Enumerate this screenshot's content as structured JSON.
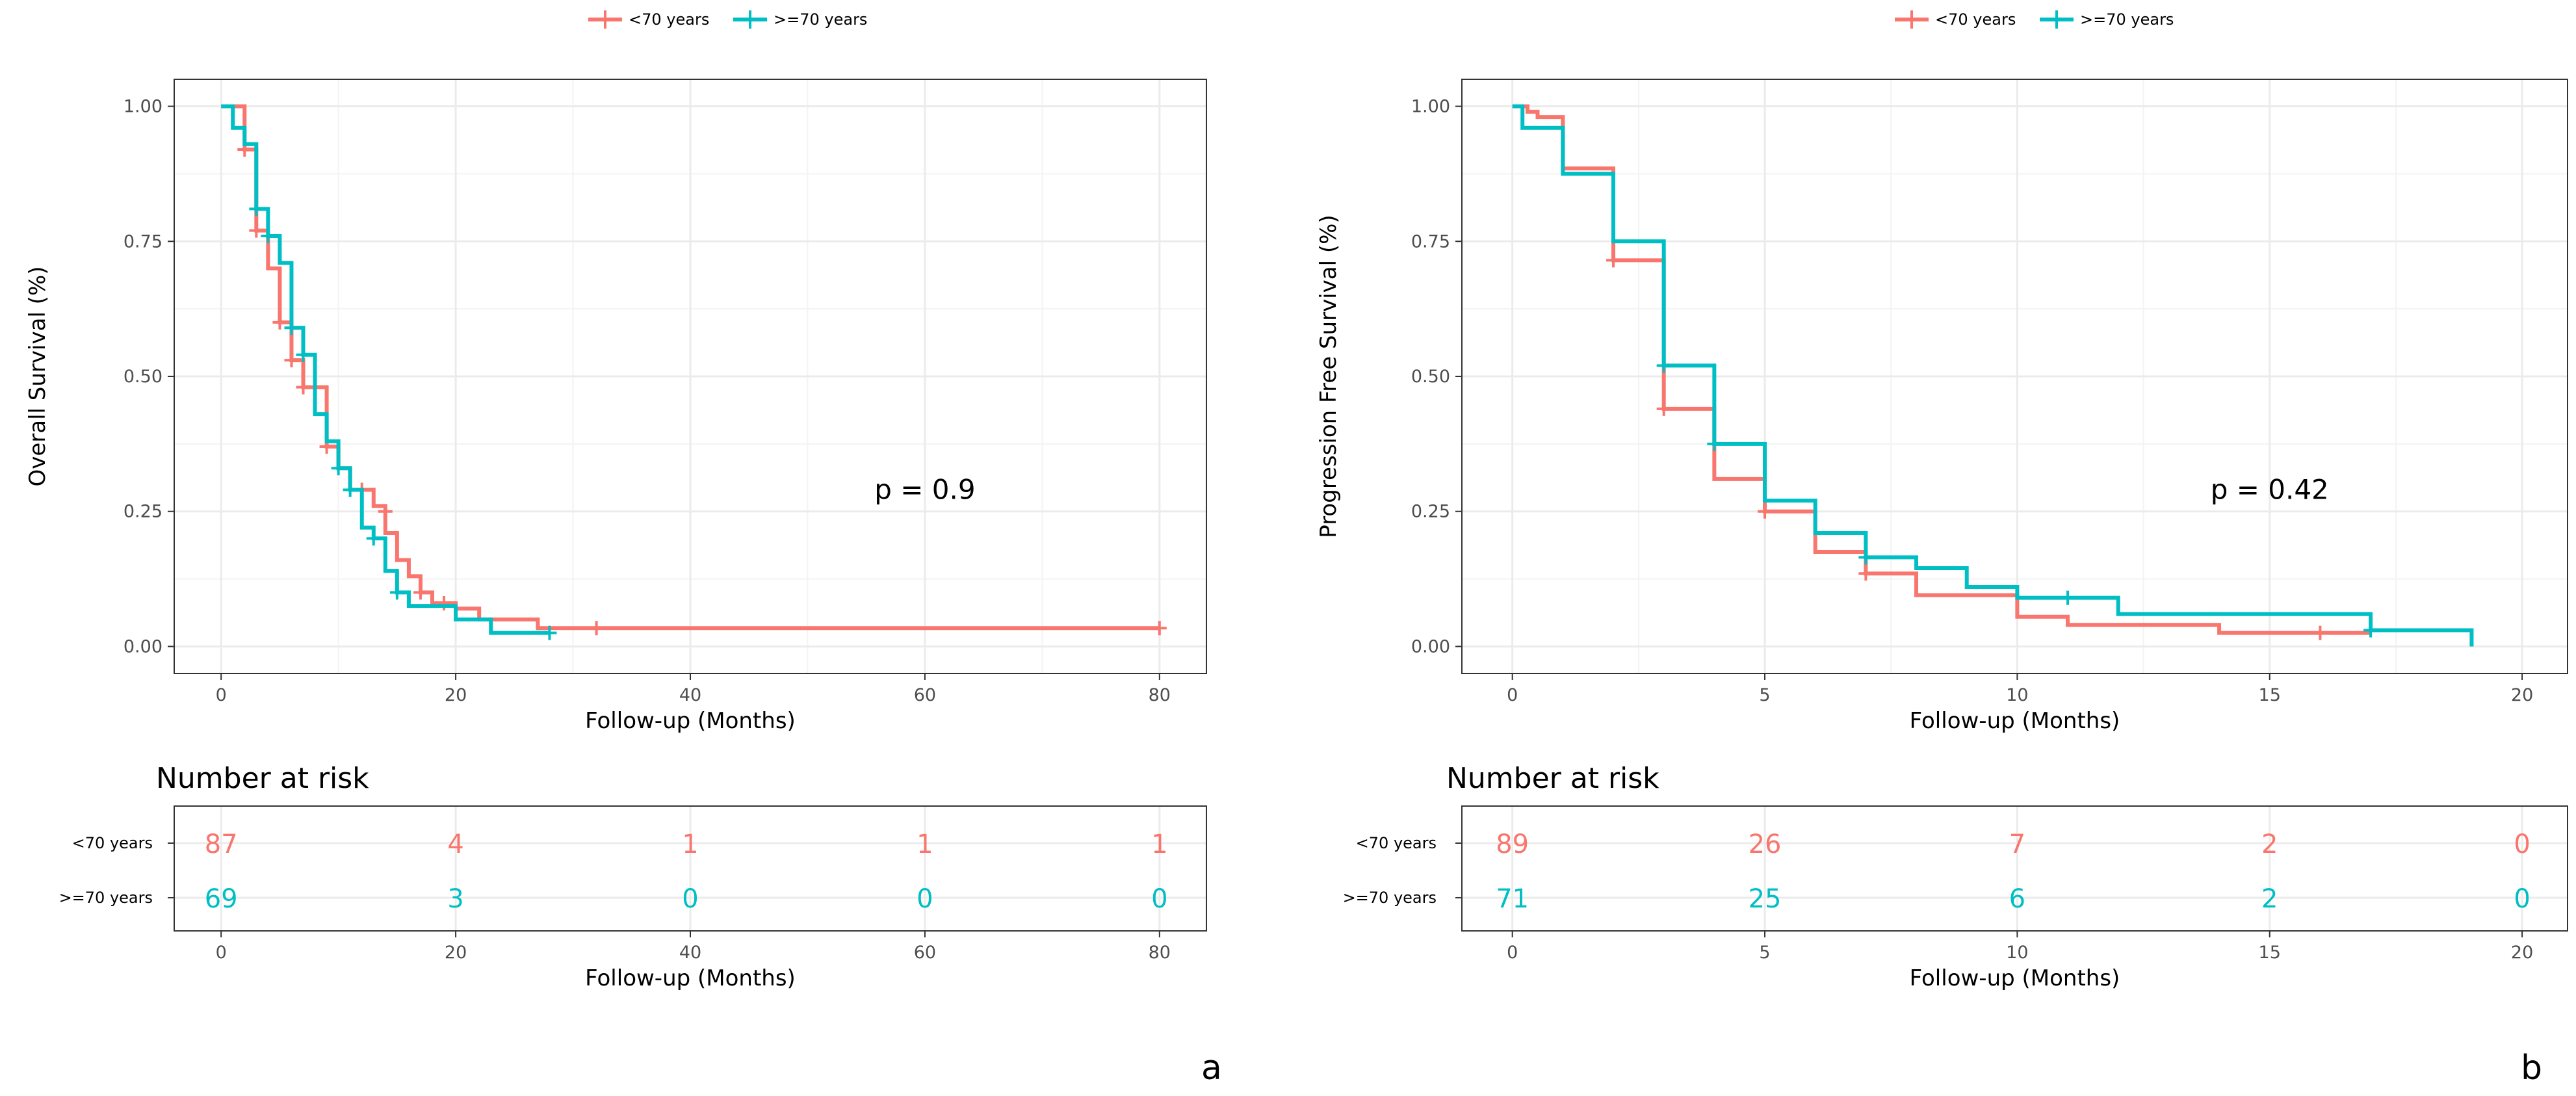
{
  "colors": {
    "group1": "#F8766D",
    "group2": "#00BFC4",
    "axis_text": "#4d4d4d",
    "text": "#000000",
    "grid": "#ebebeb",
    "border": "#333333"
  },
  "legend_labels": [
    "<70 years",
    ">=70 years"
  ],
  "panel_letters": [
    "a",
    "b"
  ],
  "risk_title": "Number at risk",
  "chart_data": [
    {
      "type": "line",
      "subtype": "kaplan-meier step",
      "title": "",
      "xlabel": "Follow-up (Months)",
      "ylabel": "Overall Survival (%)",
      "xlim": [
        -4,
        84
      ],
      "ylim": [
        -0.05,
        1.05
      ],
      "xticks": [
        0,
        20,
        40,
        60,
        80
      ],
      "yticks": [
        0,
        0.25,
        0.5,
        0.75,
        1.0
      ],
      "ytick_labels": [
        "0.00",
        "0.25",
        "0.50",
        "0.75",
        "1.00"
      ],
      "pvalue": {
        "text": "p = 0.9",
        "x": 60,
        "y": 0.29
      },
      "legend": "top-center",
      "grid": true,
      "series": [
        {
          "name": "<70 years",
          "steps": [
            [
              0,
              1.0
            ],
            [
              2,
              0.92
            ],
            [
              3,
              0.77
            ],
            [
              4,
              0.7
            ],
            [
              5,
              0.6
            ],
            [
              6,
              0.53
            ],
            [
              7,
              0.48
            ],
            [
              9,
              0.37
            ],
            [
              10,
              0.33
            ],
            [
              11,
              0.29
            ],
            [
              13,
              0.26
            ],
            [
              14,
              0.21
            ],
            [
              15,
              0.16
            ],
            [
              16,
              0.13
            ],
            [
              17,
              0.1
            ],
            [
              18,
              0.08
            ],
            [
              20,
              0.07
            ],
            [
              22,
              0.05
            ],
            [
              27,
              0.034
            ],
            [
              80,
              0.034
            ]
          ],
          "censors": [
            [
              2,
              0.92
            ],
            [
              3,
              0.77
            ],
            [
              5,
              0.6
            ],
            [
              6,
              0.53
            ],
            [
              7,
              0.48
            ],
            [
              9,
              0.37
            ],
            [
              12,
              0.29
            ],
            [
              14,
              0.25
            ],
            [
              17,
              0.1
            ],
            [
              19,
              0.08
            ],
            [
              32,
              0.034
            ],
            [
              80,
              0.034
            ]
          ]
        },
        {
          "name": ">=70 years",
          "steps": [
            [
              0,
              1.0
            ],
            [
              1,
              0.96
            ],
            [
              2,
              0.93
            ],
            [
              3,
              0.81
            ],
            [
              4,
              0.76
            ],
            [
              5,
              0.71
            ],
            [
              6,
              0.59
            ],
            [
              7,
              0.54
            ],
            [
              8,
              0.43
            ],
            [
              9,
              0.38
            ],
            [
              10,
              0.33
            ],
            [
              11,
              0.29
            ],
            [
              12,
              0.22
            ],
            [
              13,
              0.2
            ],
            [
              14,
              0.14
            ],
            [
              15,
              0.1
            ],
            [
              16,
              0.075
            ],
            [
              19,
              0.075
            ],
            [
              20,
              0.05
            ],
            [
              23,
              0.025
            ],
            [
              28,
              0.025
            ]
          ],
          "censors": [
            [
              3,
              0.81
            ],
            [
              4,
              0.76
            ],
            [
              6,
              0.59
            ],
            [
              7,
              0.54
            ],
            [
              10,
              0.33
            ],
            [
              11,
              0.29
            ],
            [
              13,
              0.2
            ],
            [
              15,
              0.1
            ],
            [
              28,
              0.025
            ]
          ]
        }
      ],
      "risk_table": {
        "xlabel": "Follow-up (Months)",
        "times": [
          0,
          20,
          40,
          60,
          80
        ],
        "rows": [
          {
            "label": "<70 years",
            "counts": [
              "87",
              "4",
              "1",
              "1",
              "1"
            ]
          },
          {
            "label": ">=70 years",
            "counts": [
              "69",
              "3",
              "0",
              "0",
              "0"
            ]
          }
        ]
      }
    },
    {
      "type": "line",
      "subtype": "kaplan-meier step",
      "title": "",
      "xlabel": "Follow-up (Months)",
      "ylabel": "Progression Free Survival (%)",
      "xlim": [
        -1,
        20.9
      ],
      "ylim": [
        -0.05,
        1.05
      ],
      "xticks": [
        0,
        5,
        10,
        15,
        20
      ],
      "yticks": [
        0,
        0.25,
        0.5,
        0.75,
        1.0
      ],
      "ytick_labels": [
        "0.00",
        "0.25",
        "0.50",
        "0.75",
        "1.00"
      ],
      "pvalue": {
        "text": "p = 0.42",
        "x": 15,
        "y": 0.29
      },
      "legend": "top-center",
      "grid": true,
      "series": [
        {
          "name": "<70 years",
          "steps": [
            [
              0,
              1.0
            ],
            [
              0.3,
              0.99
            ],
            [
              0.5,
              0.98
            ],
            [
              1,
              0.885
            ],
            [
              2,
              0.715
            ],
            [
              3,
              0.44
            ],
            [
              4,
              0.31
            ],
            [
              5,
              0.25
            ],
            [
              6,
              0.175
            ],
            [
              7,
              0.135
            ],
            [
              8,
              0.095
            ],
            [
              10,
              0.055
            ],
            [
              11,
              0.04
            ],
            [
              14,
              0.025
            ],
            [
              17,
              0.025
            ]
          ],
          "censors": [
            [
              2,
              0.715
            ],
            [
              3,
              0.44
            ],
            [
              5,
              0.25
            ],
            [
              7,
              0.135
            ],
            [
              16,
              0.025
            ]
          ]
        },
        {
          "name": ">=70 years",
          "steps": [
            [
              0,
              1.0
            ],
            [
              0.2,
              0.96
            ],
            [
              1,
              0.875
            ],
            [
              2,
              0.75
            ],
            [
              3,
              0.52
            ],
            [
              4,
              0.375
            ],
            [
              5,
              0.27
            ],
            [
              6,
              0.21
            ],
            [
              7,
              0.165
            ],
            [
              8,
              0.145
            ],
            [
              9,
              0.11
            ],
            [
              10,
              0.09
            ],
            [
              12,
              0.06
            ],
            [
              17,
              0.03
            ],
            [
              19,
              0.03
            ],
            [
              19,
              0.0
            ]
          ],
          "censors": [
            [
              3,
              0.52
            ],
            [
              4,
              0.375
            ],
            [
              7,
              0.165
            ],
            [
              11,
              0.09
            ],
            [
              17,
              0.03
            ]
          ]
        }
      ],
      "risk_table": {
        "xlabel": "Follow-up (Months)",
        "times": [
          0,
          5,
          10,
          15,
          20
        ],
        "rows": [
          {
            "label": "<70 years",
            "counts": [
              "89",
              "26",
              "7",
              "2",
              "0"
            ]
          },
          {
            "label": ">=70 years",
            "counts": [
              "71",
              "25",
              "6",
              "2",
              "0"
            ]
          }
        ]
      }
    }
  ]
}
